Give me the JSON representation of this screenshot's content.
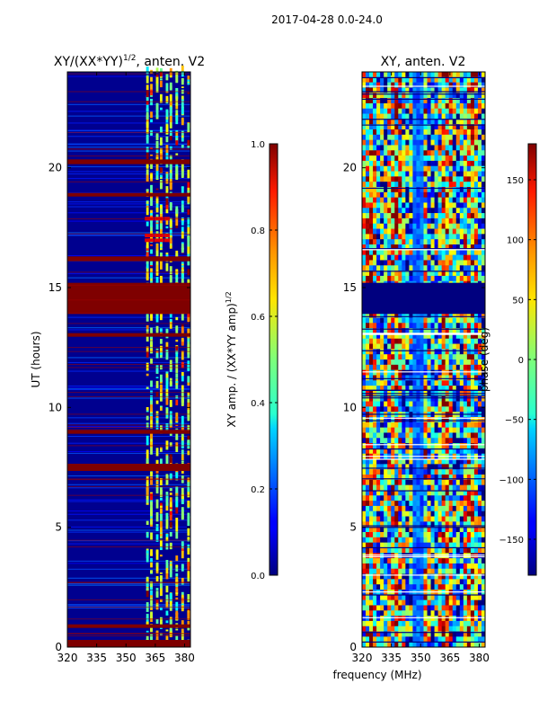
{
  "figure": {
    "suptitle": "2017-04-28 0.0-24.0",
    "xlabel_shared": "frequency (MHz)"
  },
  "chart_data": [
    {
      "type": "heatmap",
      "title_main": "XY/(XX*YY)",
      "title_sup": "1/2",
      "title_rest": ", anten. V2",
      "ylabel": "UT (hours)",
      "x_ticks": [
        "320",
        "335",
        "350",
        "365",
        "380"
      ],
      "x_tick_values": [
        320,
        335,
        350,
        365,
        380
      ],
      "xlim": [
        320,
        383
      ],
      "y_ticks": [
        "0",
        "5",
        "10",
        "15",
        "20"
      ],
      "y_tick_values": [
        0,
        5,
        10,
        15,
        20
      ],
      "ylim": [
        0,
        24
      ],
      "bright_channels_mhz": [
        361,
        363,
        366,
        368,
        371,
        373,
        376,
        379,
        382
      ],
      "flagged_hour_ranges": [
        [
          0.0,
          0.3
        ],
        [
          0.8,
          0.95
        ],
        [
          7.35,
          7.65
        ],
        [
          8.9,
          9.05
        ],
        [
          12.95,
          13.1
        ],
        [
          13.9,
          15.2
        ],
        [
          16.1,
          16.3
        ],
        [
          18.8,
          18.95
        ],
        [
          20.15,
          20.35
        ]
      ],
      "colorbar": {
        "label_main": "XY amp. / (XX*YY amp)",
        "label_sup": "1/2",
        "range": [
          0.0,
          1.0
        ],
        "ticks": [
          "0.0",
          "0.2",
          "0.4",
          "0.6",
          "0.8",
          "1.0"
        ],
        "tick_values": [
          0.0,
          0.2,
          0.4,
          0.6,
          0.8,
          1.0
        ],
        "cmap": "jet"
      }
    },
    {
      "type": "heatmap",
      "title": "XY, anten. V2",
      "x_ticks": [
        "320",
        "335",
        "350",
        "365",
        "380"
      ],
      "x_tick_values": [
        320,
        335,
        350,
        365,
        380
      ],
      "xlim": [
        320,
        383
      ],
      "y_ticks": [
        "0",
        "5",
        "10",
        "15",
        "20"
      ],
      "y_tick_values": [
        0,
        5,
        10,
        15,
        20
      ],
      "ylim": [
        0,
        24
      ],
      "flagged_hour_ranges": [
        [
          13.9,
          15.2
        ]
      ],
      "colorbar": {
        "label": "phase (deg)",
        "range": [
          -180,
          180
        ],
        "ticks": [
          "150",
          "100",
          "50",
          "0",
          "−50",
          "−100",
          "−150"
        ],
        "tick_values": [
          150,
          100,
          50,
          0,
          -50,
          -100,
          -150
        ],
        "cmap": "jet"
      }
    }
  ]
}
